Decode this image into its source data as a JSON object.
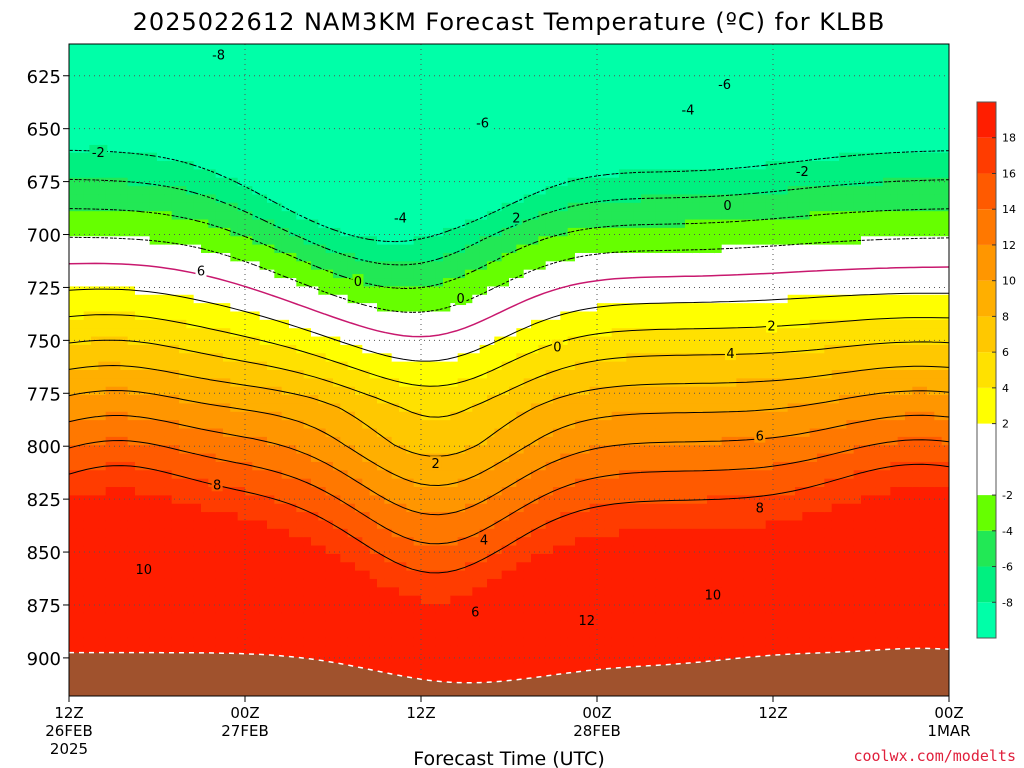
{
  "chart_data": {
    "type": "contour",
    "title": "2025022612 NAM3KM Forecast Temperature (ºC) for KLBB",
    "xlabel": "Forecast Time (UTC)",
    "credit": "coolwx.com/modelts",
    "x_ticks": [
      {
        "hour": 0,
        "lines": [
          "12Z",
          "26FEB",
          "2025"
        ]
      },
      {
        "hour": 12,
        "lines": [
          "00Z",
          "27FEB"
        ]
      },
      {
        "hour": 24,
        "lines": [
          "12Z"
        ]
      },
      {
        "hour": 36,
        "lines": [
          "00Z",
          "28FEB"
        ]
      },
      {
        "hour": 48,
        "lines": [
          "12Z"
        ]
      },
      {
        "hour": 60,
        "lines": [
          "00Z",
          "1MAR"
        ]
      }
    ],
    "xlim_hours": [
      0,
      60
    ],
    "y_ticks": [
      "625",
      "650",
      "675",
      "700",
      "725",
      "750",
      "775",
      "800",
      "825",
      "850",
      "875",
      "900"
    ],
    "y_tick_values": [
      625,
      650,
      675,
      700,
      725,
      750,
      775,
      800,
      825,
      850,
      875,
      900
    ],
    "ylim_hPa": [
      610,
      918
    ],
    "y_axis_inverted": true,
    "grid": true,
    "colorbar": {
      "levels": [
        -10,
        -8,
        -6,
        -4,
        -2,
        2,
        4,
        6,
        8,
        10,
        12,
        14,
        16,
        18,
        20
      ],
      "tick_labels": [
        "18",
        "16",
        "14",
        "12",
        "10",
        "8",
        "6",
        "4",
        "2",
        "-2",
        "-4",
        "-6",
        "-8"
      ],
      "tick_values": [
        18,
        16,
        14,
        12,
        10,
        8,
        6,
        4,
        2,
        -2,
        -4,
        -6,
        -8
      ],
      "colors": [
        {
          "range": [
            -10,
            -8
          ],
          "color": "#00ffa8"
        },
        {
          "range": [
            -8,
            -6
          ],
          "color": "#00f080"
        },
        {
          "range": [
            -6,
            -4
          ],
          "color": "#22e855"
        },
        {
          "range": [
            -4,
            -2
          ],
          "color": "#66ff00"
        },
        {
          "range": [
            -2,
            2
          ],
          "color": "#ffffff"
        },
        {
          "range": [
            2,
            4
          ],
          "color": "#ffff00"
        },
        {
          "range": [
            4,
            6
          ],
          "color": "#ffe100"
        },
        {
          "range": [
            6,
            8
          ],
          "color": "#ffc800"
        },
        {
          "range": [
            8,
            10
          ],
          "color": "#ffaf00"
        },
        {
          "range": [
            10,
            12
          ],
          "color": "#ff9600"
        },
        {
          "range": [
            12,
            14
          ],
          "color": "#ff7800"
        },
        {
          "range": [
            14,
            16
          ],
          "color": "#ff5a00"
        },
        {
          "range": [
            16,
            18
          ],
          "color": "#ff3c00"
        },
        {
          "range": [
            18,
            20
          ],
          "color": "#ff1e00"
        }
      ]
    },
    "surface_color": "#a0522d",
    "freezing_line_color": "#c8186e",
    "contour_labels": [
      {
        "text": "-8",
        "hour": 10.2,
        "p": 615
      },
      {
        "text": "-6",
        "hour": 44.7,
        "p": 629
      },
      {
        "text": "-6",
        "hour": 28.2,
        "p": 647
      },
      {
        "text": "-4",
        "hour": 42.2,
        "p": 641
      },
      {
        "text": "-4",
        "hour": 22.6,
        "p": 692
      },
      {
        "text": "-2",
        "hour": 2.0,
        "p": 661
      },
      {
        "text": "2",
        "hour": 30.5,
        "p": 692
      },
      {
        "text": "-2",
        "hour": 50.0,
        "p": 670
      },
      {
        "text": "0",
        "hour": 44.9,
        "p": 686
      },
      {
        "text": "0",
        "hour": 19.7,
        "p": 722
      },
      {
        "text": "0",
        "hour": 26.7,
        "p": 730
      },
      {
        "text": "0",
        "hour": 33.3,
        "p": 753
      },
      {
        "text": "6",
        "hour": 9.0,
        "p": 717
      },
      {
        "text": "2",
        "hour": 47.9,
        "p": 743
      },
      {
        "text": "4",
        "hour": 45.1,
        "p": 756
      },
      {
        "text": "6",
        "hour": 47.1,
        "p": 795
      },
      {
        "text": "2",
        "hour": 25.0,
        "p": 808
      },
      {
        "text": "8",
        "hour": 10.1,
        "p": 818
      },
      {
        "text": "8",
        "hour": 47.1,
        "p": 829
      },
      {
        "text": "4",
        "hour": 28.3,
        "p": 844
      },
      {
        "text": "10",
        "hour": 5.1,
        "p": 858
      },
      {
        "text": "10",
        "hour": 43.9,
        "p": 870
      },
      {
        "text": "6",
        "hour": 27.7,
        "p": 878
      },
      {
        "text": "12",
        "hour": 35.3,
        "p": 882
      }
    ]
  }
}
